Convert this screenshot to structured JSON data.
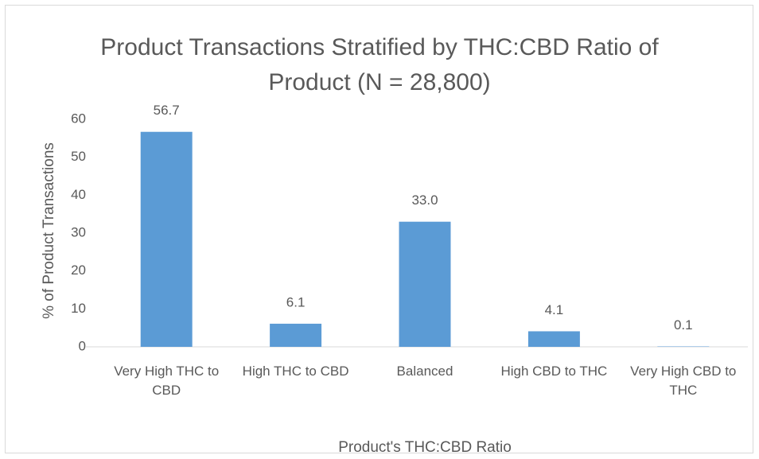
{
  "chart_data": {
    "type": "bar",
    "title": "Product Transactions Stratified by THC:CBD Ratio of Product (N = 28,800)",
    "x_label": "Product's THC:CBD Ratio",
    "y_label": "% of Product Transactions",
    "categories": [
      "Very High THC to CBD",
      "High THC to CBD",
      "Balanced",
      "High CBD to THC",
      "Very High CBD to THC"
    ],
    "values": [
      56.7,
      6.1,
      33.0,
      4.1,
      0.1
    ],
    "value_labels": [
      "56.7",
      "6.1",
      "33.0",
      "4.1",
      "0.1"
    ],
    "color": "#5b9bd5",
    "ylim": [
      0,
      60
    ],
    "yticks": [
      0,
      10,
      20,
      30,
      40,
      50,
      60
    ],
    "grid": false
  }
}
